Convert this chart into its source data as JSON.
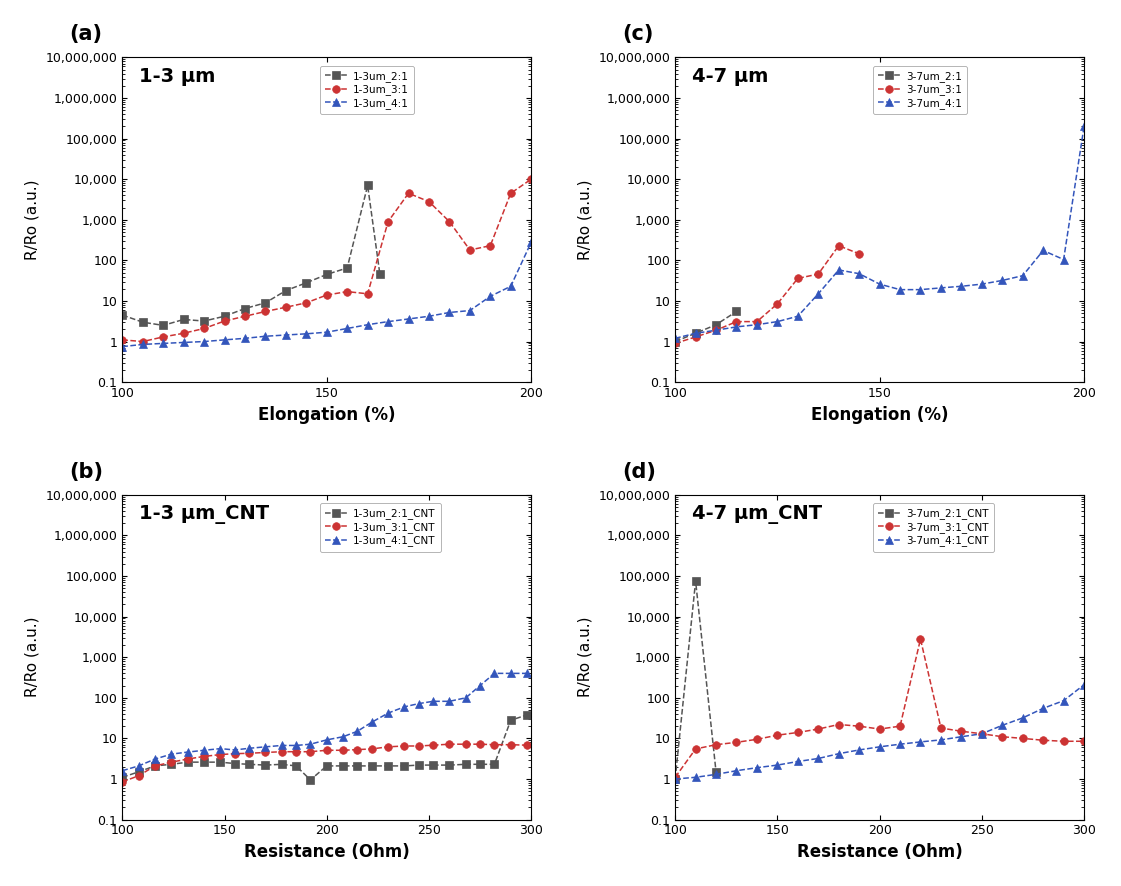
{
  "panel_a": {
    "title": "1-3 μm",
    "xlabel": "Elongation (%)",
    "ylabel": "R/Ro (a.u.)",
    "xlim": [
      100,
      200
    ],
    "ylim": [
      0.1,
      10000000
    ],
    "series": [
      {
        "label": "1-3um_2:1",
        "color": "#555555",
        "marker": "s",
        "linestyle": "--",
        "x": [
          100,
          105,
          110,
          115,
          120,
          125,
          130,
          135,
          140,
          145,
          150,
          155,
          160,
          163
        ],
        "y": [
          4.5,
          3.0,
          2.5,
          3.5,
          3.2,
          4.2,
          6.5,
          9.0,
          18,
          28,
          45,
          65,
          7000,
          45
        ]
      },
      {
        "label": "1-3um_3:1",
        "color": "#cc3333",
        "marker": "o",
        "linestyle": "--",
        "x": [
          100,
          105,
          110,
          115,
          120,
          125,
          130,
          135,
          140,
          145,
          150,
          155,
          160,
          165,
          170,
          175,
          180,
          185,
          190,
          195,
          200
        ],
        "y": [
          1.1,
          1.0,
          1.3,
          1.6,
          2.1,
          3.2,
          4.2,
          5.5,
          7.0,
          9.0,
          14,
          17,
          15,
          900,
          4500,
          2800,
          900,
          180,
          230,
          4500,
          10000
        ]
      },
      {
        "label": "1-3um_4:1",
        "color": "#3355bb",
        "marker": "^",
        "linestyle": "--",
        "x": [
          100,
          105,
          110,
          115,
          120,
          125,
          130,
          135,
          140,
          145,
          150,
          155,
          160,
          165,
          170,
          175,
          180,
          185,
          190,
          195,
          200
        ],
        "y": [
          0.75,
          0.85,
          0.9,
          0.95,
          1.0,
          1.1,
          1.2,
          1.35,
          1.45,
          1.55,
          1.7,
          2.1,
          2.6,
          3.1,
          3.6,
          4.2,
          5.2,
          5.8,
          13,
          23,
          280
        ]
      }
    ]
  },
  "panel_b": {
    "title": "1-3 μm_CNT",
    "xlabel": "Resistance (Ohm)",
    "ylabel": "R/Ro (a.u.)",
    "xlim": [
      100,
      300
    ],
    "ylim": [
      0.1,
      10000000
    ],
    "series": [
      {
        "label": "1-3um_2:1_CNT",
        "color": "#555555",
        "marker": "s",
        "linestyle": "--",
        "x": [
          100,
          108,
          116,
          124,
          132,
          140,
          148,
          155,
          162,
          170,
          178,
          185,
          192,
          200,
          208,
          215,
          222,
          230,
          238,
          245,
          252,
          260,
          268,
          275,
          282,
          290,
          298
        ],
        "y": [
          1.1,
          1.5,
          2.1,
          2.3,
          2.6,
          2.6,
          2.6,
          2.4,
          2.3,
          2.2,
          2.3,
          2.1,
          0.95,
          2.1,
          2.1,
          2.1,
          2.1,
          2.1,
          2.1,
          2.2,
          2.2,
          2.2,
          2.3,
          2.3,
          2.3,
          28,
          38
        ]
      },
      {
        "label": "1-3um_3:1_CNT",
        "color": "#cc3333",
        "marker": "o",
        "linestyle": "--",
        "x": [
          100,
          108,
          116,
          124,
          132,
          140,
          148,
          155,
          162,
          170,
          178,
          185,
          192,
          200,
          208,
          215,
          222,
          230,
          238,
          245,
          252,
          260,
          268,
          275,
          282,
          290,
          298
        ],
        "y": [
          0.85,
          1.2,
          2.1,
          2.6,
          3.1,
          3.6,
          4.0,
          4.2,
          4.3,
          4.5,
          4.7,
          4.7,
          4.7,
          5.1,
          5.1,
          5.3,
          5.5,
          6.2,
          6.5,
          6.5,
          6.8,
          7.2,
          7.2,
          7.2,
          7.0,
          7.0,
          6.8
        ]
      },
      {
        "label": "1-3um_4:1_CNT",
        "color": "#3355bb",
        "marker": "^",
        "linestyle": "--",
        "x": [
          100,
          108,
          116,
          124,
          132,
          140,
          148,
          155,
          162,
          170,
          178,
          185,
          192,
          200,
          208,
          215,
          222,
          230,
          238,
          245,
          252,
          260,
          268,
          275,
          282,
          290,
          298
        ],
        "y": [
          1.6,
          2.1,
          3.1,
          4.1,
          4.6,
          5.1,
          5.6,
          5.2,
          5.7,
          6.2,
          6.7,
          6.7,
          7.2,
          9.2,
          11,
          15,
          25,
          42,
          60,
          72,
          82,
          82,
          100,
          200,
          400,
          400,
          400
        ]
      }
    ]
  },
  "panel_c": {
    "title": "4-7 μm",
    "xlabel": "Elongation (%)",
    "ylabel": "R/Ro (a.u.)",
    "xlim": [
      100,
      200
    ],
    "ylim": [
      0.1,
      10000000
    ],
    "series": [
      {
        "label": "3-7um_2:1",
        "color": "#555555",
        "marker": "s",
        "linestyle": "--",
        "x": [
          100,
          105,
          110,
          115
        ],
        "y": [
          1.0,
          1.6,
          2.6,
          5.5
        ]
      },
      {
        "label": "3-7um_3:1",
        "color": "#cc3333",
        "marker": "o",
        "linestyle": "--",
        "x": [
          100,
          105,
          110,
          115,
          120,
          125,
          130,
          135,
          140,
          145
        ],
        "y": [
          0.9,
          1.3,
          1.9,
          3.1,
          3.1,
          8.5,
          36,
          46,
          230,
          145
        ]
      },
      {
        "label": "3-7um_4:1",
        "color": "#3355bb",
        "marker": "^",
        "linestyle": "--",
        "x": [
          100,
          105,
          110,
          115,
          120,
          125,
          130,
          135,
          140,
          145,
          150,
          155,
          160,
          165,
          170,
          175,
          180,
          185,
          190,
          195,
          200
        ],
        "y": [
          1.2,
          1.6,
          1.9,
          2.3,
          2.6,
          3.1,
          4.2,
          15,
          58,
          47,
          26,
          19,
          19,
          21,
          23,
          26,
          32,
          42,
          175,
          105,
          200000
        ]
      }
    ]
  },
  "panel_d": {
    "title": "4-7 μm_CNT",
    "xlabel": "Resistance (Ohm)",
    "ylabel": "R/Ro (a.u.)",
    "xlim": [
      100,
      300
    ],
    "ylim": [
      0.1,
      10000000
    ],
    "series": [
      {
        "label": "3-7um_2:1_CNT",
        "color": "#555555",
        "marker": "s",
        "linestyle": "--",
        "x": [
          100,
          110,
          120
        ],
        "y": [
          1.0,
          75000,
          1.5
        ]
      },
      {
        "label": "3-7um_3:1_CNT",
        "color": "#cc3333",
        "marker": "o",
        "linestyle": "--",
        "x": [
          100,
          110,
          120,
          130,
          140,
          150,
          160,
          170,
          180,
          190,
          200,
          210,
          220,
          230,
          240,
          250,
          260,
          270,
          280,
          290,
          300
        ],
        "y": [
          1.1,
          5.5,
          7.0,
          8.0,
          9.5,
          12,
          14,
          17,
          22,
          20,
          17,
          20,
          2800,
          18,
          15,
          13,
          11,
          10,
          9,
          8.5,
          8.5
        ]
      },
      {
        "label": "3-7um_4:1_CNT",
        "color": "#3355bb",
        "marker": "^",
        "linestyle": "--",
        "x": [
          100,
          110,
          120,
          130,
          140,
          150,
          160,
          170,
          180,
          190,
          200,
          210,
          220,
          230,
          240,
          250,
          260,
          270,
          280,
          290,
          300
        ],
        "y": [
          1.0,
          1.1,
          1.3,
          1.6,
          1.9,
          2.2,
          2.7,
          3.2,
          4.2,
          5.2,
          6.2,
          7.2,
          8.2,
          9.2,
          11,
          13,
          21,
          32,
          55,
          85,
          210
        ]
      }
    ]
  }
}
